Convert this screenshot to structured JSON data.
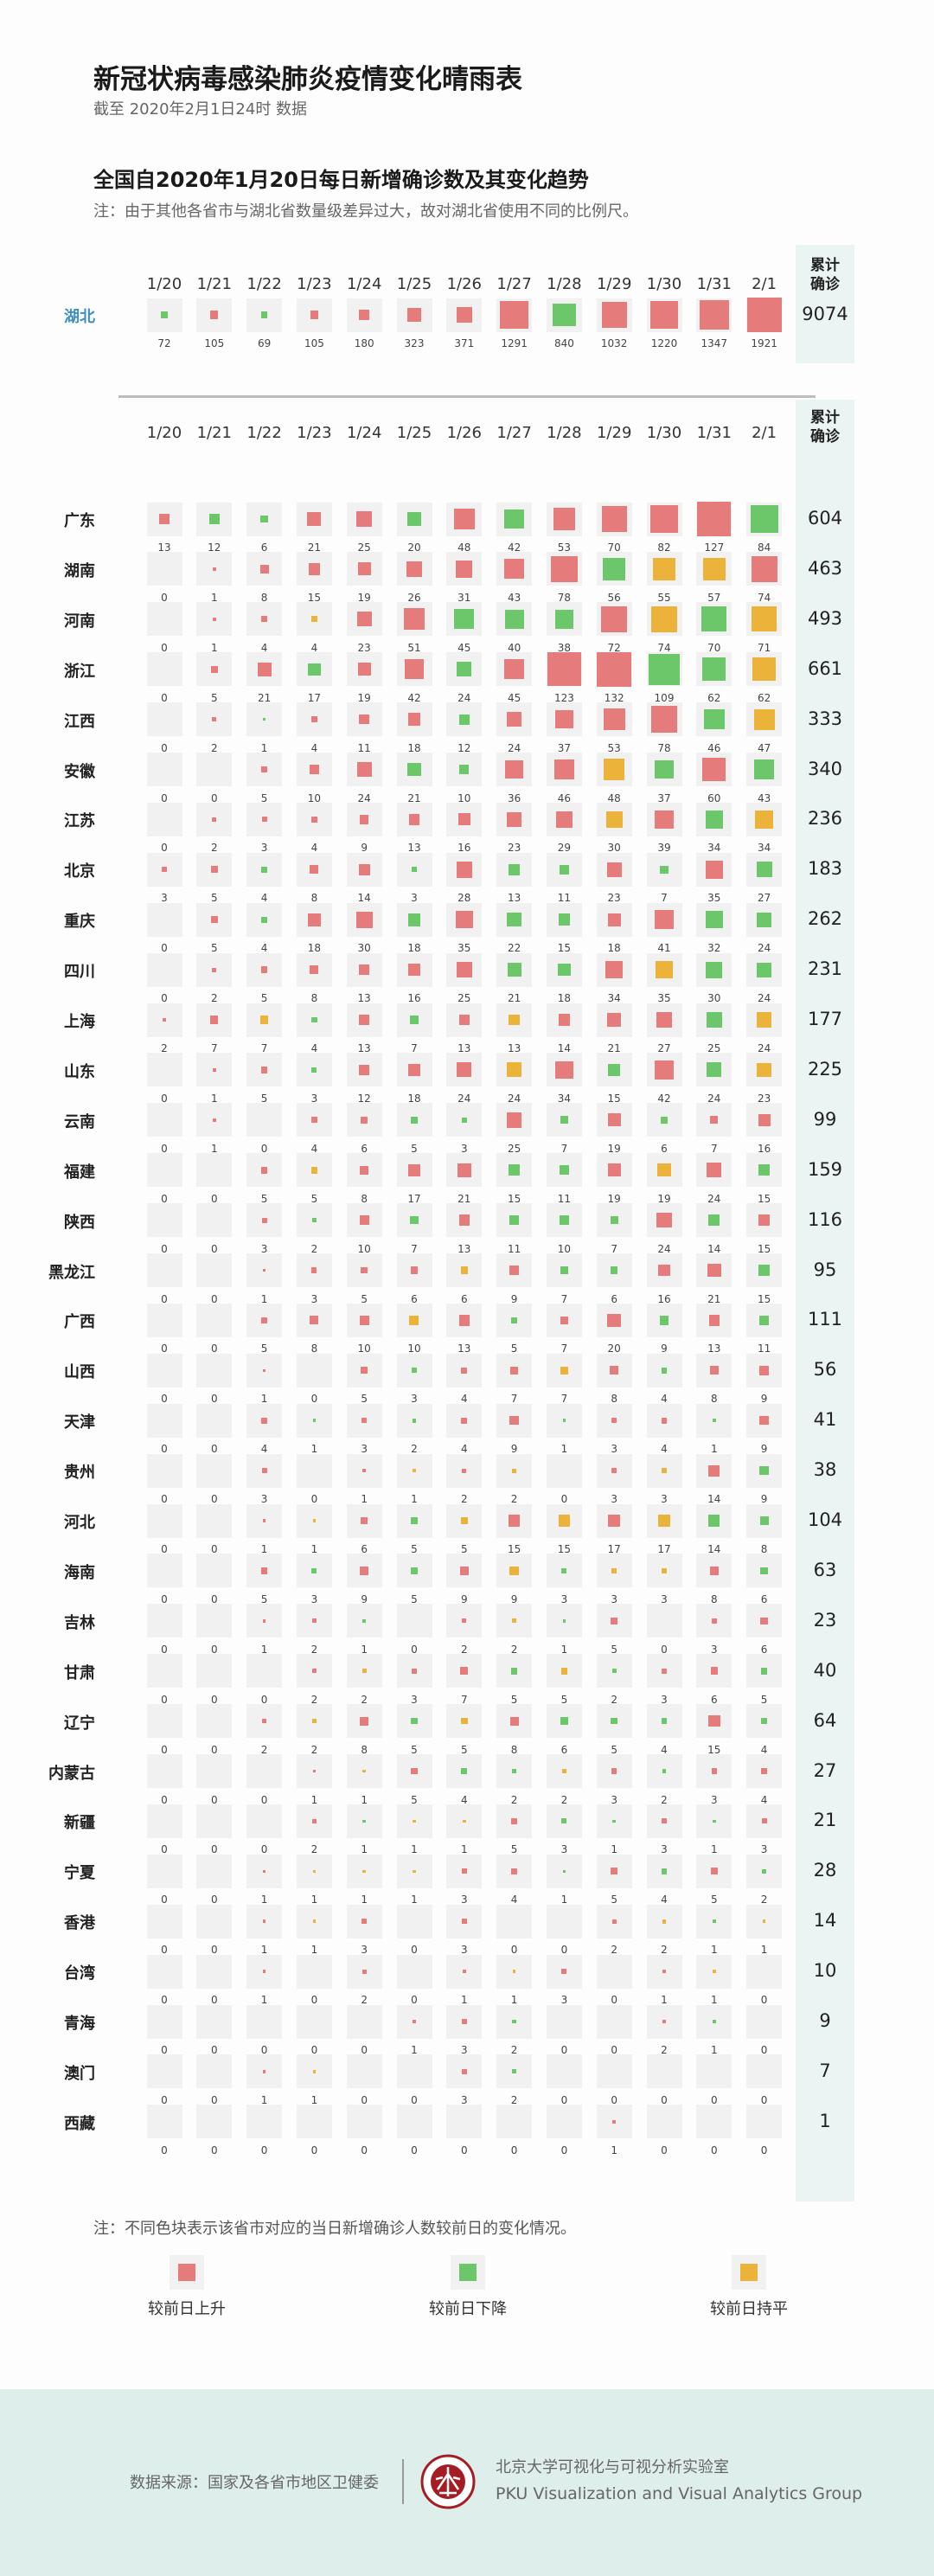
{
  "header": {
    "title": "新冠状病毒感染肺炎疫情变化晴雨表",
    "subtitle": "截至 2020年2月1日24时 数据"
  },
  "section": {
    "title": "全国自2020年1月20日每日新增确诊数及其变化趋势",
    "note": "注：由于其他各省市与湖北省数量级差异过大，故对湖北省使用不同的比例尺。"
  },
  "colors": {
    "up": "#e57b7b",
    "down": "#6cc66a",
    "flat": "#ebb33a",
    "cell_bg": "#f2f1f1",
    "panel": "#eaf4f2",
    "hubei_label": "#3d8fc2"
  },
  "chart_data": {
    "type": "heatmap",
    "title": "全国自2020年1月20日每日新增确诊数及其变化趋势",
    "dates": [
      "1/20",
      "1/21",
      "1/22",
      "1/23",
      "1/24",
      "1/25",
      "1/26",
      "1/27",
      "1/28",
      "1/29",
      "1/30",
      "1/31",
      "2/1"
    ],
    "cumulative_label": "累计确诊",
    "hubei": {
      "name": "湖北",
      "first_trend": "down",
      "values": [
        72,
        105,
        69,
        105,
        180,
        323,
        371,
        1291,
        840,
        1032,
        1220,
        1347,
        1921
      ],
      "total": 9074
    },
    "provinces": [
      {
        "name": "广东",
        "first_trend": "up",
        "values": [
          13,
          12,
          6,
          21,
          25,
          20,
          48,
          42,
          53,
          70,
          82,
          127,
          84
        ],
        "total": 604
      },
      {
        "name": "湖南",
        "values": [
          0,
          1,
          8,
          15,
          19,
          26,
          31,
          43,
          78,
          56,
          55,
          57,
          74
        ],
        "total": 463
      },
      {
        "name": "河南",
        "values": [
          0,
          1,
          4,
          4,
          23,
          51,
          45,
          40,
          38,
          72,
          74,
          70,
          71
        ],
        "total": 493
      },
      {
        "name": "浙江",
        "values": [
          0,
          5,
          21,
          17,
          19,
          42,
          24,
          45,
          123,
          132,
          109,
          62,
          62
        ],
        "total": 661
      },
      {
        "name": "江西",
        "values": [
          0,
          2,
          1,
          4,
          11,
          18,
          12,
          24,
          37,
          53,
          78,
          46,
          47
        ],
        "total": 333
      },
      {
        "name": "安徽",
        "values": [
          0,
          0,
          5,
          10,
          24,
          21,
          10,
          36,
          46,
          48,
          37,
          60,
          43
        ],
        "total": 340
      },
      {
        "name": "江苏",
        "values": [
          0,
          2,
          3,
          4,
          9,
          13,
          16,
          23,
          29,
          30,
          39,
          34,
          34
        ],
        "total": 236
      },
      {
        "name": "北京",
        "first_trend": "up",
        "values": [
          3,
          5,
          4,
          8,
          14,
          3,
          28,
          13,
          11,
          23,
          7,
          35,
          27
        ],
        "total": 183
      },
      {
        "name": "重庆",
        "values": [
          0,
          5,
          4,
          18,
          30,
          18,
          35,
          22,
          15,
          18,
          41,
          32,
          24
        ],
        "total": 262
      },
      {
        "name": "四川",
        "values": [
          0,
          2,
          5,
          8,
          13,
          16,
          25,
          21,
          18,
          34,
          35,
          30,
          24
        ],
        "total": 231
      },
      {
        "name": "上海",
        "first_trend": "up",
        "values": [
          2,
          7,
          7,
          4,
          13,
          7,
          13,
          13,
          14,
          21,
          27,
          25,
          24
        ],
        "total": 177
      },
      {
        "name": "山东",
        "values": [
          0,
          1,
          5,
          3,
          12,
          18,
          24,
          24,
          34,
          15,
          42,
          24,
          23
        ],
        "total": 225
      },
      {
        "name": "云南",
        "values": [
          0,
          1,
          0,
          4,
          6,
          5,
          3,
          25,
          7,
          19,
          6,
          7,
          16
        ],
        "total": 99
      },
      {
        "name": "福建",
        "values": [
          0,
          0,
          5,
          5,
          8,
          17,
          21,
          15,
          11,
          19,
          19,
          24,
          15
        ],
        "total": 159
      },
      {
        "name": "陕西",
        "values": [
          0,
          0,
          3,
          2,
          10,
          7,
          13,
          11,
          10,
          7,
          24,
          14,
          15
        ],
        "total": 116
      },
      {
        "name": "黑龙江",
        "values": [
          0,
          0,
          1,
          3,
          5,
          6,
          6,
          9,
          7,
          6,
          16,
          21,
          15
        ],
        "total": 95
      },
      {
        "name": "广西",
        "values": [
          0,
          0,
          5,
          8,
          10,
          10,
          13,
          5,
          7,
          20,
          9,
          13,
          11
        ],
        "total": 111
      },
      {
        "name": "山西",
        "values": [
          0,
          0,
          1,
          0,
          5,
          3,
          4,
          7,
          7,
          8,
          4,
          8,
          9
        ],
        "total": 56
      },
      {
        "name": "天津",
        "values": [
          0,
          0,
          4,
          1,
          3,
          2,
          4,
          9,
          1,
          3,
          4,
          1,
          9
        ],
        "total": 41
      },
      {
        "name": "贵州",
        "values": [
          0,
          0,
          3,
          0,
          1,
          1,
          2,
          2,
          0,
          3,
          3,
          14,
          9
        ],
        "total": 38
      },
      {
        "name": "河北",
        "values": [
          0,
          0,
          1,
          1,
          6,
          5,
          5,
          15,
          15,
          17,
          17,
          14,
          8
        ],
        "total": 104
      },
      {
        "name": "海南",
        "values": [
          0,
          0,
          5,
          3,
          9,
          5,
          9,
          9,
          3,
          3,
          3,
          8,
          6
        ],
        "total": 63
      },
      {
        "name": "吉林",
        "values": [
          0,
          0,
          1,
          2,
          1,
          0,
          2,
          2,
          1,
          5,
          0,
          3,
          6
        ],
        "total": 23
      },
      {
        "name": "甘肃",
        "values": [
          0,
          0,
          0,
          2,
          2,
          3,
          7,
          5,
          5,
          2,
          3,
          6,
          5
        ],
        "total": 40
      },
      {
        "name": "辽宁",
        "values": [
          0,
          0,
          2,
          2,
          8,
          5,
          5,
          8,
          6,
          5,
          4,
          15,
          4
        ],
        "total": 64
      },
      {
        "name": "内蒙古",
        "values": [
          0,
          0,
          0,
          1,
          1,
          5,
          4,
          2,
          2,
          3,
          2,
          3,
          4
        ],
        "total": 27
      },
      {
        "name": "新疆",
        "values": [
          0,
          0,
          0,
          2,
          1,
          1,
          1,
          5,
          3,
          1,
          3,
          1,
          3
        ],
        "total": 21
      },
      {
        "name": "宁夏",
        "values": [
          0,
          0,
          1,
          1,
          1,
          1,
          3,
          4,
          1,
          5,
          4,
          5,
          2
        ],
        "total": 28
      },
      {
        "name": "香港",
        "values": [
          0,
          0,
          1,
          1,
          3,
          0,
          3,
          0,
          0,
          2,
          2,
          1,
          1
        ],
        "total": 14
      },
      {
        "name": "台湾",
        "values": [
          0,
          0,
          1,
          0,
          2,
          0,
          1,
          1,
          3,
          0,
          1,
          1,
          0
        ],
        "total": 10
      },
      {
        "name": "青海",
        "values": [
          0,
          0,
          0,
          0,
          0,
          1,
          3,
          2,
          0,
          0,
          2,
          1,
          0
        ],
        "total": 9
      },
      {
        "name": "澳门",
        "values": [
          0,
          0,
          1,
          1,
          0,
          0,
          3,
          2,
          0,
          0,
          0,
          0,
          0
        ],
        "total": 7
      },
      {
        "name": "西藏",
        "values": [
          0,
          0,
          0,
          0,
          0,
          0,
          0,
          0,
          0,
          1,
          0,
          0,
          0
        ],
        "total": 1
      }
    ]
  },
  "legend": {
    "note": "注：不同色块表示该省市对应的当日新增确诊人数较前日的变化情况。",
    "items": [
      {
        "key": "up",
        "label": "较前日上升"
      },
      {
        "key": "down",
        "label": "较前日下降"
      },
      {
        "key": "flat",
        "label": "较前日持平"
      }
    ]
  },
  "footer": {
    "source": "数据来源：国家及各省市地区卫健委",
    "lab_cn": "北京大学可视化与可视分析实验室",
    "lab_en": "PKU Visualization and Visual Analytics Group",
    "logo_text": "PEKING UNIVERSITY 1898"
  }
}
